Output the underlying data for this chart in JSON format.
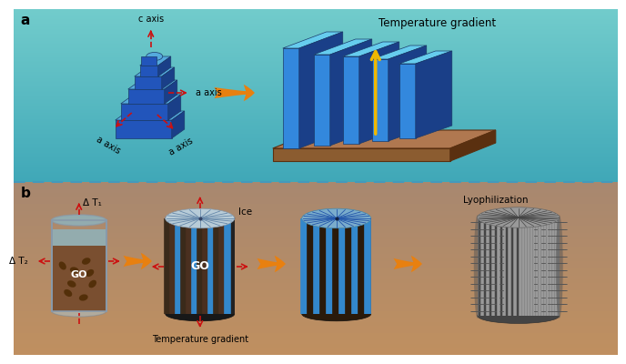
{
  "panel_a_label": "a",
  "panel_b_label": "b",
  "title_a_text": "Temperature gradient",
  "title_b_text": "Temperature gradient",
  "ice_label": "Ice",
  "lyophilization_label": "Lyophilization",
  "go_label": "GO",
  "dt1_label": "Δ T₁",
  "dt2_label": "Δ T₂",
  "c_axis_label": "c axis",
  "a_axis_label": "a axis",
  "blue_face": "#2255bb",
  "blue_top": "#55aadd",
  "blue_side": "#1a3f88",
  "blue_plate_face": "#3388dd",
  "blue_plate_top": "#66ccee",
  "blue_plate_side": "#1a3f88",
  "orange_arrow": "#e88010",
  "red_dashed": "#cc1111",
  "yellow_arrow": "#f0b800",
  "brown_top": "#b07850",
  "brown_front": "#8b5c30",
  "brown_side": "#5a3010",
  "go_dark": "#222222",
  "go_brown": "#6b4830",
  "go_stripe_blue": "#3388cc",
  "go_ice_top": "#b8ccd8",
  "gray_main": "#888888",
  "gray_dark": "#555555",
  "gray_light": "#aaaaaa",
  "beaker_glass": "#c8dde8",
  "beaker_go_brown": "#7a4f30",
  "beaker_water": "#88bbcc"
}
